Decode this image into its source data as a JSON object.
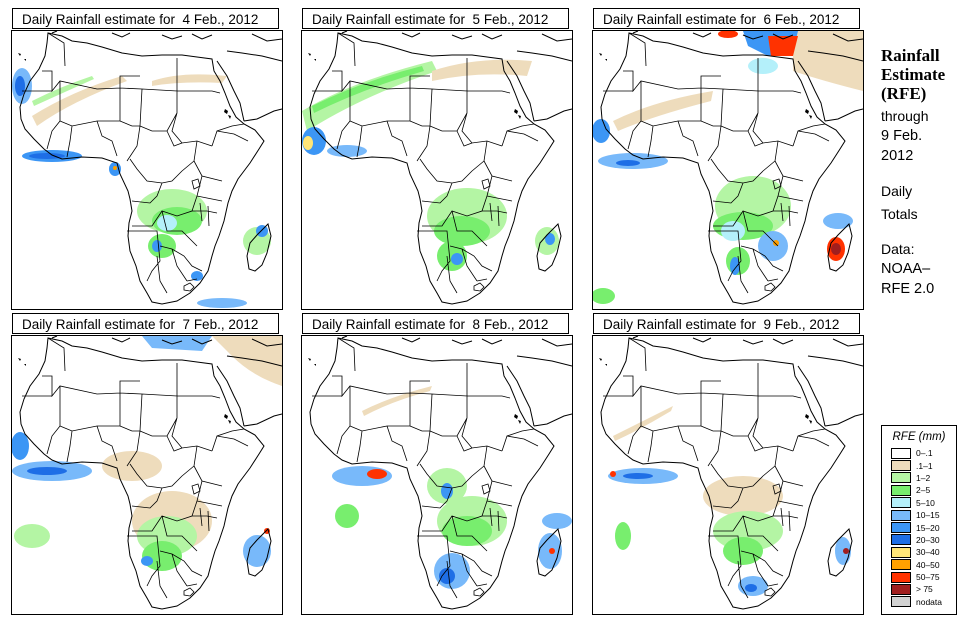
{
  "panels": [
    {
      "title": "Daily Rainfall estimate for  4 Feb., 2012",
      "date": "4 Feb., 2012"
    },
    {
      "title": "Daily Rainfall estimate for  5 Feb., 2012",
      "date": "5 Feb., 2012"
    },
    {
      "title": "Daily Rainfall estimate for  6 Feb., 2012",
      "date": "6 Feb., 2012"
    },
    {
      "title": "Daily Rainfall estimate for  7 Feb., 2012",
      "date": "7 Feb., 2012"
    },
    {
      "title": "Daily Rainfall estimate for  8 Feb., 2012",
      "date": "8 Feb., 2012"
    },
    {
      "title": "Daily Rainfall estimate for  9 Feb., 2012",
      "date": "9 Feb., 2012"
    }
  ],
  "sidebar": {
    "title_line1": "Rainfall",
    "title_line2": "Estimate",
    "title_line3": "(RFE)",
    "through": "through",
    "through_date_line1": "9 Feb.",
    "through_date_line2": "2012",
    "period_line1": "Daily",
    "period_line2": "Totals",
    "source_line1": "Data:",
    "source_line2": "NOAA–",
    "source_line3": "RFE 2.0"
  },
  "legend": {
    "title": "RFE (mm)",
    "items": [
      {
        "label": "0–.1",
        "color": "#ffffff"
      },
      {
        "label": ".1–1",
        "color": "#eedcbc"
      },
      {
        "label": "1–2",
        "color": "#b4f5a4"
      },
      {
        "label": "2–5",
        "color": "#78ee6e"
      },
      {
        "label": "5–10",
        "color": "#b4f0fa"
      },
      {
        "label": "10–15",
        "color": "#78b9fa"
      },
      {
        "label": "15–20",
        "color": "#3c96f5"
      },
      {
        "label": "20–30",
        "color": "#1e6ee6"
      },
      {
        "label": "30–40",
        "color": "#ffe678"
      },
      {
        "label": "40–50",
        "color": "#ffa000"
      },
      {
        "label": "50–75",
        "color": "#ff3200"
      },
      {
        "label": "> 75",
        "color": "#a01e1e"
      },
      {
        "label": "nodata",
        "color": "#d2d2d2"
      }
    ]
  }
}
